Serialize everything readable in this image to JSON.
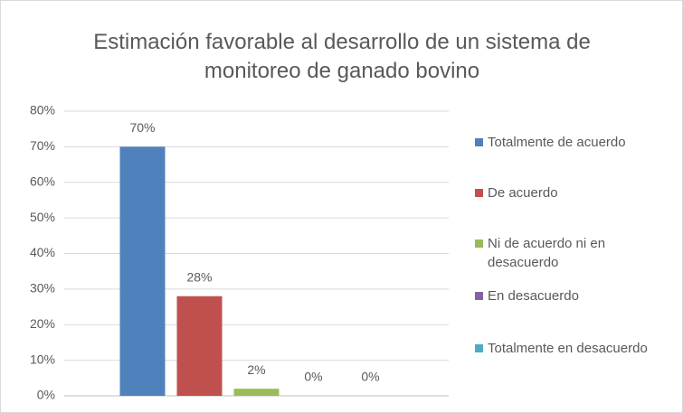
{
  "chart_data": {
    "type": "bar",
    "title": "Estimación favorable al desarrollo de un sistema de monitoreo de ganado bovino",
    "categories": [
      null
    ],
    "series": [
      {
        "name": "Totalmente de acuerdo",
        "color": "#4f81bd",
        "values": [
          70
        ],
        "value_labels": [
          "70%"
        ]
      },
      {
        "name": "De acuerdo",
        "color": "#c0504d",
        "values": [
          28
        ],
        "value_labels": [
          "28%"
        ]
      },
      {
        "name": "Ni de acuerdo ni en desacuerdo",
        "color": "#9bbb59",
        "values": [
          2
        ],
        "value_labels": [
          "2%"
        ]
      },
      {
        "name": "En desacuerdo",
        "color": "#8064a2",
        "values": [
          0
        ],
        "value_labels": [
          "0%"
        ]
      },
      {
        "name": "Totalmente en desacuerdo",
        "color": "#4bacc6",
        "values": [
          0
        ],
        "value_labels": [
          "0%"
        ]
      }
    ],
    "ylim": [
      0,
      80
    ],
    "yticks": [
      {
        "value": 0,
        "label": "0%"
      },
      {
        "value": 10,
        "label": "10%"
      },
      {
        "value": 20,
        "label": "20%"
      },
      {
        "value": 30,
        "label": "30%"
      },
      {
        "value": 40,
        "label": "40%"
      },
      {
        "value": 50,
        "label": "50%"
      },
      {
        "value": 60,
        "label": "60%"
      },
      {
        "value": 70,
        "label": "70%"
      },
      {
        "value": 80,
        "label": "80%"
      }
    ],
    "grid": true,
    "legend": "right"
  }
}
